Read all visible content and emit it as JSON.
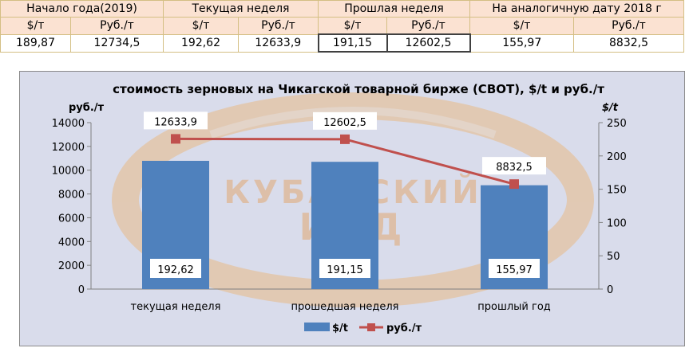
{
  "table": {
    "header": [
      "Начало года(2019)",
      "Текущая неделя",
      "Прошлая неделя",
      "На аналогичную дату 2018 г"
    ],
    "subheader": [
      "$/т",
      "Руб./т",
      "$/т",
      "Руб./т",
      "$/т",
      "Руб./т",
      "$/т",
      "Руб./т"
    ],
    "values": [
      "189,87",
      "12734,5",
      "192,62",
      "12633,9",
      "191,15",
      "12602,5",
      "155,97",
      "8832,5"
    ]
  },
  "chart_data": {
    "type": "bar",
    "title": "стоимость зерновых на Чикагской товарной бирже (CBOT), $/t и руб./т",
    "y_left_label": "руб./т",
    "y_right_label": "$/t",
    "y_left_range": [
      0,
      14000
    ],
    "y_left_ticks": [
      "0",
      "2000",
      "4000",
      "6000",
      "8000",
      "10000",
      "12000",
      "14000"
    ],
    "y_right_range": [
      0,
      250
    ],
    "y_right_ticks": [
      "0",
      "50",
      "100",
      "150",
      "200",
      "250"
    ],
    "categories": [
      "текущая неделя",
      "прошедшая неделя",
      "прошлый год"
    ],
    "series": [
      {
        "name": "$/t",
        "type": "bar",
        "axis": "right",
        "values": [
          192.62,
          191.15,
          155.97
        ],
        "labels": [
          "192,62",
          "191,15",
          "155,97"
        ],
        "color": "#4f81bd"
      },
      {
        "name": "руб./т",
        "type": "line",
        "axis": "left",
        "values": [
          12633.9,
          12602.5,
          8832.5
        ],
        "labels": [
          "12633,9",
          "12602,5",
          "8832,5"
        ],
        "color": "#c0504d"
      }
    ],
    "grid": false,
    "legend": "bottom",
    "watermark": "КУБАНСКИЙ ИКД"
  }
}
